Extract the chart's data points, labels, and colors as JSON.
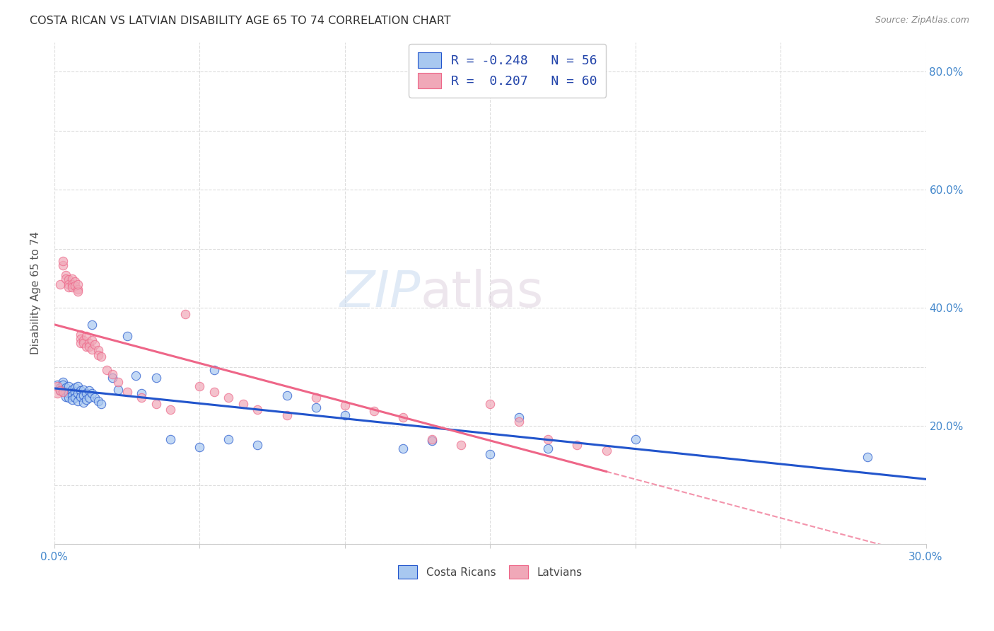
{
  "title": "COSTA RICAN VS LATVIAN DISABILITY AGE 65 TO 74 CORRELATION CHART",
  "source": "Source: ZipAtlas.com",
  "ylabel": "Disability Age 65 to 74",
  "xlim": [
    0.0,
    0.3
  ],
  "ylim": [
    0.0,
    0.85
  ],
  "xticks": [
    0.0,
    0.05,
    0.1,
    0.15,
    0.2,
    0.25,
    0.3
  ],
  "yticks": [
    0.0,
    0.1,
    0.2,
    0.3,
    0.4,
    0.5,
    0.6,
    0.7,
    0.8
  ],
  "yticklabels_right": [
    "",
    "",
    "20.0%",
    "",
    "40.0%",
    "",
    "60.0%",
    "",
    "80.0%"
  ],
  "costa_ricans_color": "#a8c8f0",
  "latvians_color": "#f0a8b8",
  "costa_ricans_label": "Costa Ricans",
  "latvians_label": "Latvians",
  "cr_R": -0.248,
  "cr_N": 56,
  "lv_R": 0.207,
  "lv_N": 60,
  "legend_R_color": "#2244aa",
  "background_color": "#ffffff",
  "grid_color": "#dddddd",
  "right_tick_color": "#4488cc",
  "cr_line_color": "#2255cc",
  "lv_line_color": "#ee6688",
  "costa_ricans_x": [
    0.001,
    0.002,
    0.002,
    0.003,
    0.003,
    0.003,
    0.004,
    0.004,
    0.004,
    0.005,
    0.005,
    0.005,
    0.006,
    0.006,
    0.006,
    0.007,
    0.007,
    0.007,
    0.008,
    0.008,
    0.008,
    0.009,
    0.009,
    0.01,
    0.01,
    0.01,
    0.011,
    0.011,
    0.012,
    0.012,
    0.013,
    0.013,
    0.014,
    0.015,
    0.016,
    0.02,
    0.022,
    0.025,
    0.028,
    0.03,
    0.035,
    0.04,
    0.05,
    0.055,
    0.06,
    0.07,
    0.08,
    0.09,
    0.1,
    0.12,
    0.13,
    0.15,
    0.16,
    0.17,
    0.2,
    0.28
  ],
  "costa_ricans_y": [
    0.27,
    0.265,
    0.26,
    0.275,
    0.27,
    0.26,
    0.265,
    0.258,
    0.25,
    0.268,
    0.255,
    0.248,
    0.262,
    0.252,
    0.245,
    0.265,
    0.258,
    0.248,
    0.268,
    0.255,
    0.242,
    0.26,
    0.25,
    0.262,
    0.252,
    0.24,
    0.255,
    0.245,
    0.26,
    0.248,
    0.372,
    0.255,
    0.248,
    0.242,
    0.238,
    0.282,
    0.262,
    0.352,
    0.285,
    0.255,
    0.282,
    0.178,
    0.165,
    0.295,
    0.178,
    0.168,
    0.252,
    0.232,
    0.218,
    0.162,
    0.175,
    0.152,
    0.215,
    0.162,
    0.178,
    0.148
  ],
  "latvians_x": [
    0.001,
    0.001,
    0.002,
    0.002,
    0.003,
    0.003,
    0.003,
    0.004,
    0.004,
    0.005,
    0.005,
    0.005,
    0.006,
    0.006,
    0.006,
    0.007,
    0.007,
    0.008,
    0.008,
    0.008,
    0.009,
    0.009,
    0.009,
    0.01,
    0.01,
    0.011,
    0.011,
    0.012,
    0.012,
    0.013,
    0.013,
    0.014,
    0.015,
    0.015,
    0.016,
    0.018,
    0.02,
    0.022,
    0.025,
    0.03,
    0.035,
    0.04,
    0.045,
    0.05,
    0.055,
    0.06,
    0.065,
    0.07,
    0.08,
    0.09,
    0.1,
    0.11,
    0.12,
    0.13,
    0.14,
    0.15,
    0.16,
    0.17,
    0.18,
    0.19
  ],
  "latvians_y": [
    0.268,
    0.255,
    0.44,
    0.26,
    0.472,
    0.258,
    0.48,
    0.455,
    0.45,
    0.448,
    0.44,
    0.435,
    0.45,
    0.44,
    0.435,
    0.445,
    0.438,
    0.432,
    0.428,
    0.44,
    0.355,
    0.348,
    0.34,
    0.345,
    0.34,
    0.335,
    0.352,
    0.34,
    0.335,
    0.345,
    0.33,
    0.338,
    0.328,
    0.32,
    0.318,
    0.295,
    0.288,
    0.275,
    0.258,
    0.248,
    0.238,
    0.228,
    0.39,
    0.268,
    0.258,
    0.248,
    0.238,
    0.228,
    0.218,
    0.248,
    0.235,
    0.225,
    0.215,
    0.178,
    0.168,
    0.238,
    0.208,
    0.178,
    0.168,
    0.158
  ]
}
